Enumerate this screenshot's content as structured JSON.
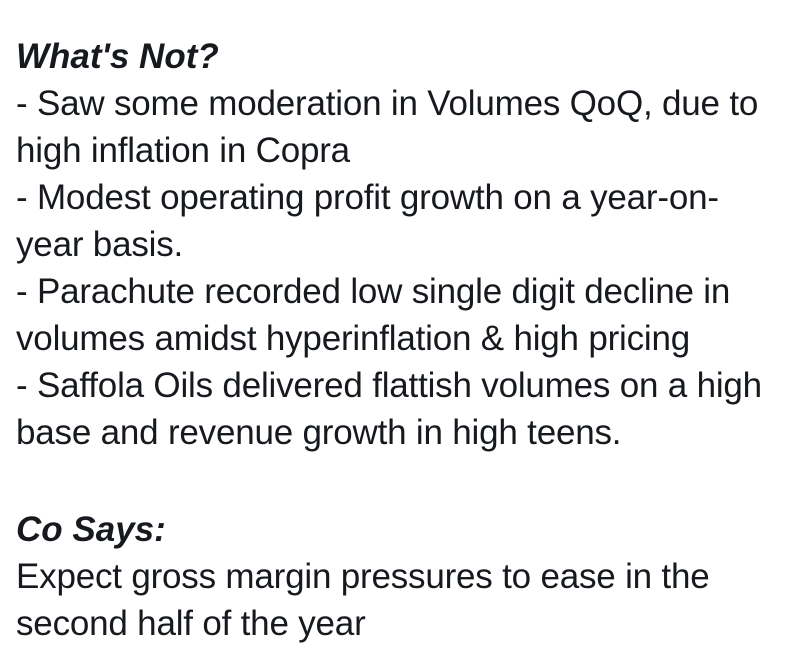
{
  "page": {
    "background_color": "#ffffff",
    "text_color": "#16191d"
  },
  "sections": [
    {
      "heading": "What's Not?",
      "lines": [
        "- Saw some moderation in Volumes QoQ, due to",
        "high inflation in Copra",
        "- Modest operating profit growth on a year-on-",
        "year basis.",
        "- Parachute recorded low single digit decline in",
        "volumes amidst hyperinflation & high pricing",
        "- Saffola Oils delivered flattish volumes on a high",
        "base and revenue growth in high teens."
      ]
    },
    {
      "heading": "Co Says:",
      "lines": [
        "Expect gross margin pressures to ease in the",
        "second half of the year"
      ]
    }
  ]
}
